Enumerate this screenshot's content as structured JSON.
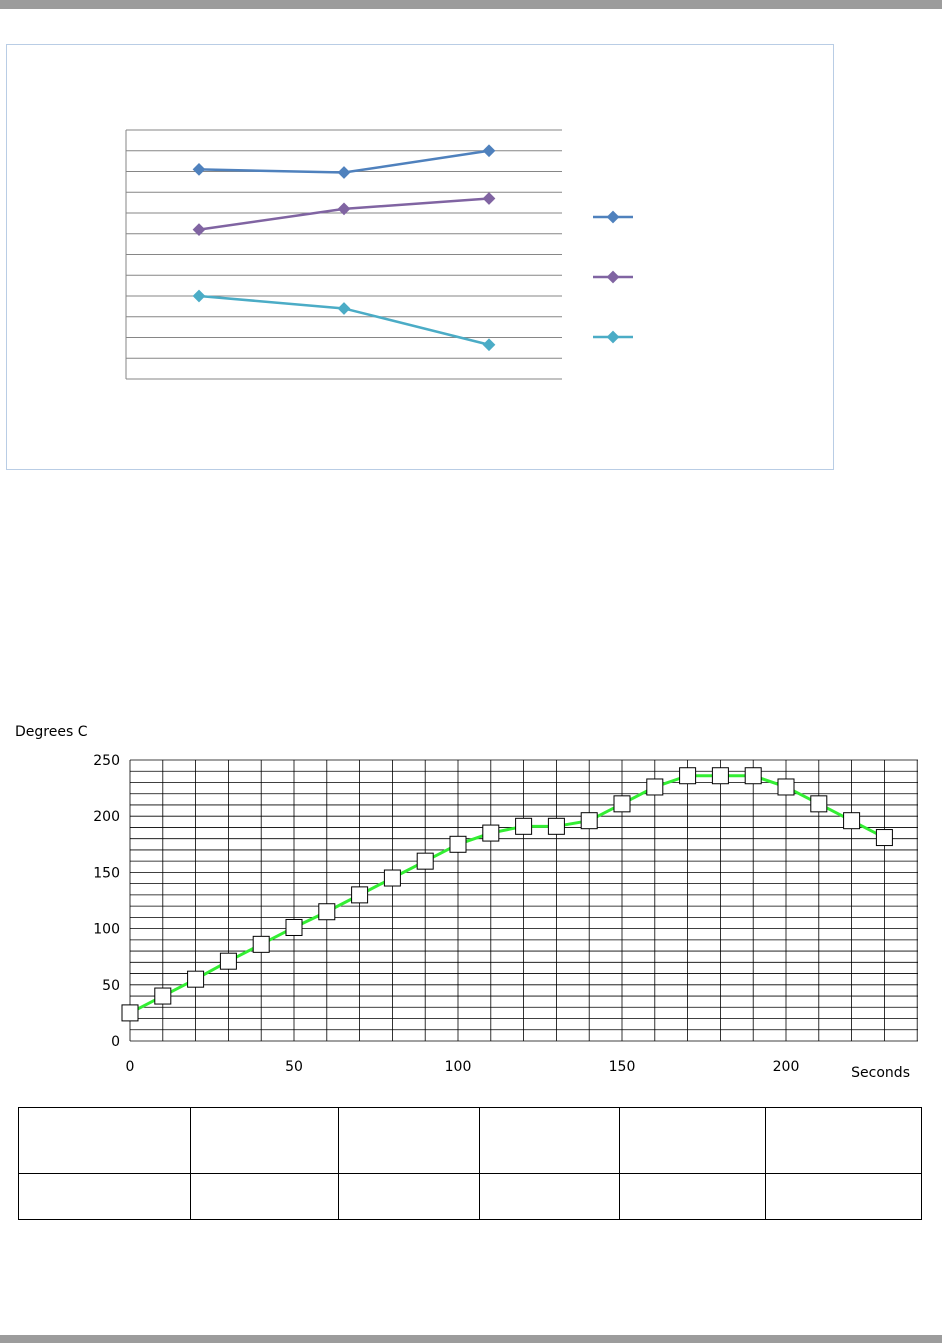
{
  "colors": {
    "series1": "#4f81bd",
    "series2": "#8064a2",
    "series3": "#4bacc6",
    "temp_line": "#33ee33",
    "grid": "#000000",
    "page_bars": "#9c9c9c"
  },
  "chart_data": [
    {
      "type": "line",
      "title": "",
      "xlabel": "",
      "ylabel": "",
      "categories": [
        "",
        "",
        ""
      ],
      "ylim": [
        0,
        12
      ],
      "grid": true,
      "legend_position": "right",
      "series": [
        {
          "name": "",
          "values": [
            10.1,
            9.95,
            11.0
          ]
        },
        {
          "name": "",
          "values": [
            7.2,
            8.2,
            8.7
          ]
        },
        {
          "name": "",
          "values": [
            4.0,
            3.4,
            1.65
          ]
        }
      ]
    },
    {
      "type": "line",
      "title": "",
      "xlabel": "Seconds",
      "ylabel": "Degrees C",
      "xlim": [
        0,
        240
      ],
      "ylim": [
        0,
        250
      ],
      "x_ticks": [
        0,
        50,
        100,
        150,
        200
      ],
      "y_ticks": [
        0,
        50,
        100,
        150,
        200,
        250
      ],
      "grid": true,
      "marker": "square",
      "series": [
        {
          "name": "",
          "x": [
            0,
            10,
            20,
            30,
            40,
            50,
            60,
            70,
            80,
            90,
            100,
            110,
            120,
            130,
            140,
            150,
            160,
            170,
            180,
            190,
            200,
            210,
            220,
            230
          ],
          "y": [
            25,
            40,
            55,
            71,
            86,
            101,
            115,
            130,
            145,
            160,
            175,
            185,
            191,
            191,
            196,
            211,
            226,
            236,
            236,
            236,
            226,
            211,
            196,
            181
          ]
        }
      ]
    }
  ],
  "table": {
    "rows": [
      [
        "",
        "",
        "",
        "",
        "",
        ""
      ],
      [
        "",
        "",
        "",
        "",
        "",
        ""
      ]
    ]
  }
}
